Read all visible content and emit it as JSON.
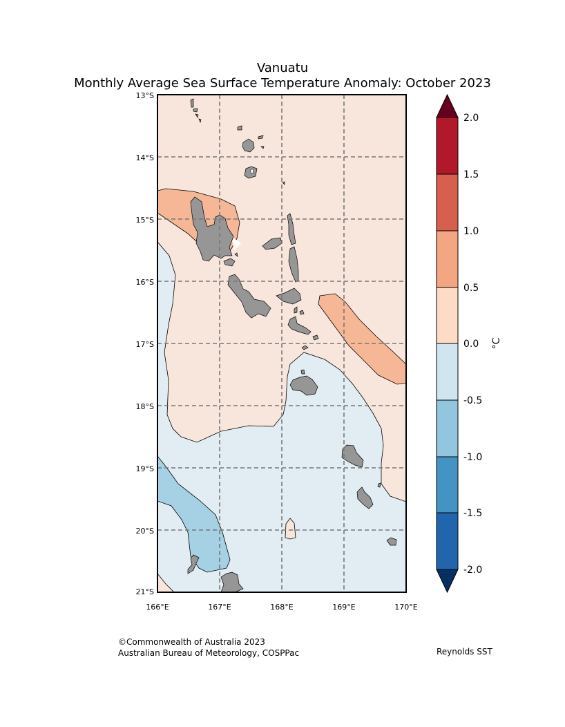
{
  "title": {
    "line1": "Vanuatu",
    "line2": "Monthly Average Sea Surface Temperature Anomaly: October 2023"
  },
  "map": {
    "lon_range": [
      166,
      170
    ],
    "lat_range": [
      -21,
      -13
    ],
    "lon_ticks": [
      "166°E",
      "167°E",
      "168°E",
      "169°E",
      "170°E"
    ],
    "lat_ticks": [
      "13°S",
      "14°S",
      "15°S",
      "16°S",
      "17°S",
      "18°S",
      "19°S",
      "20°S",
      "21°S"
    ],
    "gridlines": "dashed",
    "land_color": "#969696"
  },
  "colorbar": {
    "unit": "°C",
    "levels": [
      "-2.0",
      "-1.5",
      "-1.0",
      "-0.5",
      "0.0",
      "0.5",
      "1.0",
      "1.5",
      "2.0"
    ],
    "colors": [
      "#2166ac",
      "#4393c3",
      "#92c5de",
      "#d1e5f0",
      "#fddbc7",
      "#f4a582",
      "#d6604d",
      "#b2182b"
    ],
    "under_color": "#053061",
    "over_color": "#67001f",
    "map_fill": {
      "-0.5..0.0": "#e1ecf3",
      "-1.0..-0.5": "#a6d0e4",
      "0.0..0.5": "#f8e6dc",
      "0.5..1.0": "#f6b797"
    }
  },
  "footer": {
    "copyright": "©Commonwealth of Australia 2023",
    "agency": "Australian Bureau of Meteorology, COSPPac",
    "source": "Reynolds SST"
  }
}
